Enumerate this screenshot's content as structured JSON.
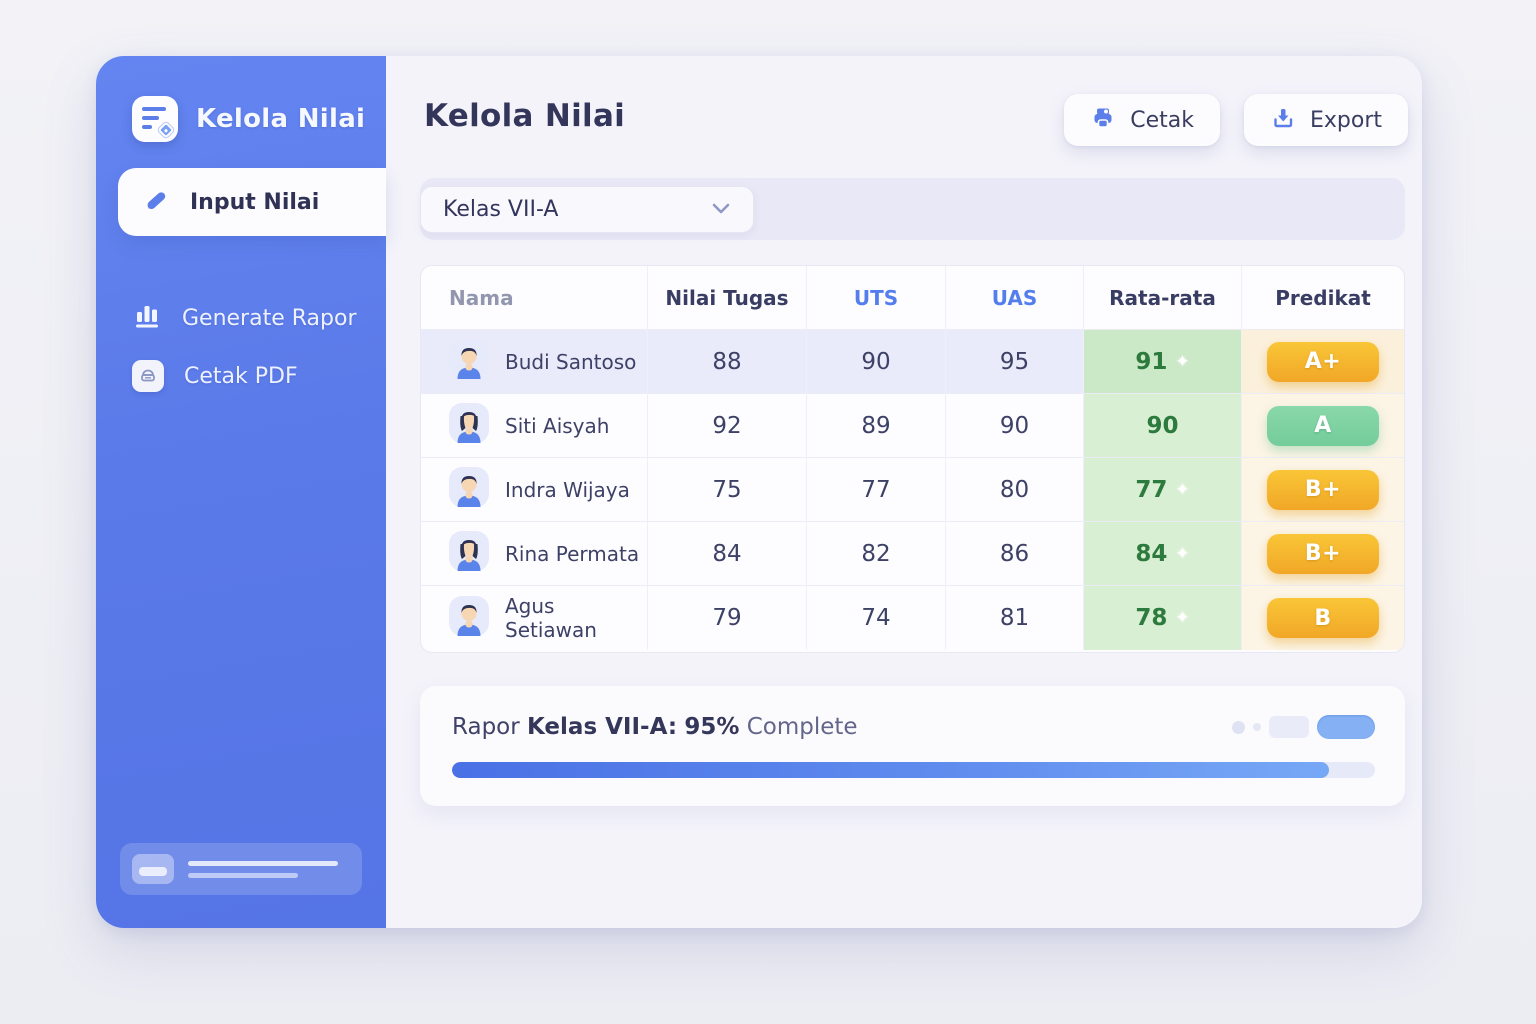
{
  "app": {
    "window_title": "Kelola Nilai"
  },
  "colors": {
    "accent": "#5b7ee8",
    "sidebar_blue": "#5b7ae9",
    "amber_badge": "#f4b62e",
    "green_badge": "#80d2a3",
    "avg_cell_green": "#d9efd3",
    "avg_text_green": "#2c7a3d",
    "progress_blue": "#4a71e5"
  },
  "sidebar": {
    "brand": "Kelola Nilai",
    "items": [
      {
        "label": "Input Nilai",
        "icon": "pencil-icon",
        "active": true
      },
      {
        "label": "Generate Rapor",
        "icon": "bar-chart-icon",
        "active": false
      },
      {
        "label": "Cetak PDF",
        "icon": "printer-chip-icon",
        "active": false
      }
    ]
  },
  "header": {
    "title": "Kelola Nilai",
    "buttons": [
      {
        "label": "Cetak",
        "icon": "printer-icon"
      },
      {
        "label": "Export",
        "icon": "download-icon"
      }
    ]
  },
  "filter": {
    "selected_class": "Kelas VII-A"
  },
  "table": {
    "columns": [
      "Nama",
      "Nilai Tugas",
      "UTS",
      "UAS",
      "Rata-rata",
      "Predikat"
    ],
    "rows": [
      {
        "name": "Budi Santoso",
        "avatar": "boy",
        "tugas": "88",
        "uts": "90",
        "uas": "95",
        "avg": "91",
        "sparkle": true,
        "grade": "A+",
        "grade_style": "amber",
        "highlight": true
      },
      {
        "name": "Siti Aisyah",
        "avatar": "girl",
        "tugas": "92",
        "uts": "89",
        "uas": "90",
        "avg": "90",
        "sparkle": false,
        "grade": "A",
        "grade_style": "green",
        "highlight": false
      },
      {
        "name": "Indra Wijaya",
        "avatar": "boy",
        "tugas": "75",
        "uts": "77",
        "uas": "80",
        "avg": "77",
        "sparkle": true,
        "grade": "B+",
        "grade_style": "amber",
        "highlight": false
      },
      {
        "name": "Rina Permata",
        "avatar": "girl",
        "tugas": "84",
        "uts": "82",
        "uas": "86",
        "avg": "84",
        "sparkle": true,
        "grade": "B+",
        "grade_style": "amber",
        "highlight": false
      },
      {
        "name": "Agus Setiawan",
        "avatar": "boy",
        "tugas": "79",
        "uts": "74",
        "uas": "81",
        "avg": "78",
        "sparkle": true,
        "grade": "B",
        "grade_style": "amber",
        "highlight": false
      }
    ]
  },
  "progress": {
    "prefix": "Rapor",
    "class_label": "Kelas VII-A:",
    "percent": "95%",
    "suffix": "Complete",
    "value": 95
  }
}
